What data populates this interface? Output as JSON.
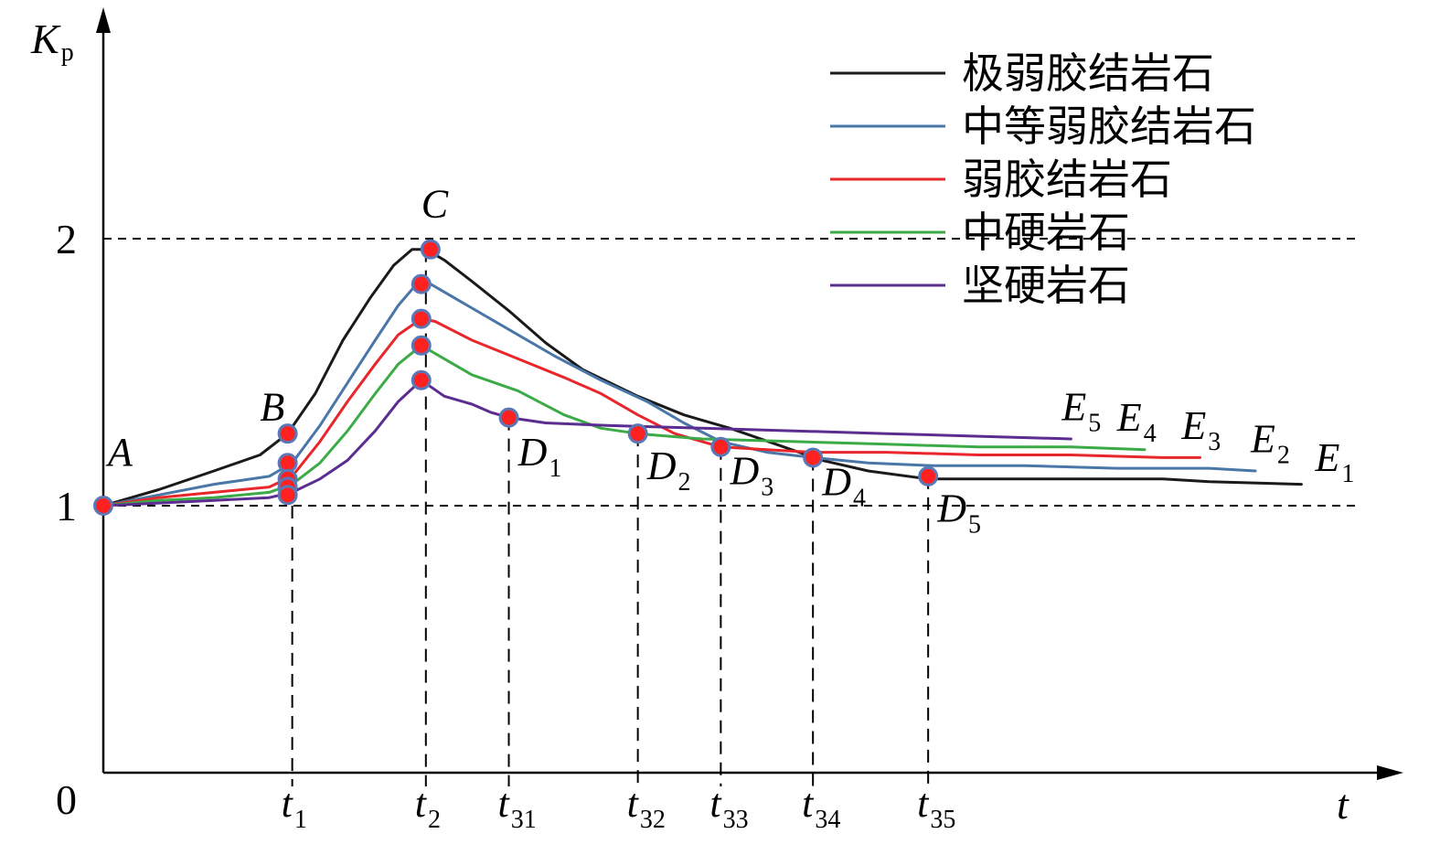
{
  "chart_data": {
    "type": "line",
    "y_axis_label": "K",
    "y_axis_label_sub": "p",
    "x_axis_label": "t",
    "ylim": [
      0,
      2.9
    ],
    "y_ticks": [
      {
        "label": "0",
        "value": 0
      },
      {
        "label": "1",
        "value": 1
      },
      {
        "label": "2",
        "value": 2
      }
    ],
    "x_ticks": [
      {
        "main": "t",
        "sub": "1",
        "value": 2.05
      },
      {
        "main": "t",
        "sub": "2",
        "value": 3.5
      },
      {
        "main": "t",
        "sub": "31",
        "value": 4.4
      },
      {
        "main": "t",
        "sub": "32",
        "value": 5.8
      },
      {
        "main": "t",
        "sub": "33",
        "value": 6.7
      },
      {
        "main": "t",
        "sub": "34",
        "value": 7.7
      },
      {
        "main": "t",
        "sub": "35",
        "value": 8.95
      }
    ],
    "reference_lines": [
      1,
      2
    ],
    "series": [
      {
        "name": "极弱胶结岩石",
        "color": "#1a1a1a",
        "points": [
          [
            0,
            1
          ],
          [
            0.6,
            1.06
          ],
          [
            1.2,
            1.13
          ],
          [
            1.7,
            1.19
          ],
          [
            2.0,
            1.27
          ],
          [
            2.3,
            1.42
          ],
          [
            2.6,
            1.62
          ],
          [
            2.9,
            1.78
          ],
          [
            3.15,
            1.9
          ],
          [
            3.35,
            1.96
          ],
          [
            3.5,
            1.96
          ],
          [
            3.7,
            1.92
          ],
          [
            4.0,
            1.84
          ],
          [
            4.4,
            1.73
          ],
          [
            4.8,
            1.61
          ],
          [
            5.2,
            1.51
          ],
          [
            5.8,
            1.41
          ],
          [
            6.3,
            1.34
          ],
          [
            6.8,
            1.29
          ],
          [
            7.3,
            1.23
          ],
          [
            7.8,
            1.17
          ],
          [
            8.3,
            1.13
          ],
          [
            8.95,
            1.1
          ],
          [
            9.5,
            1.1
          ],
          [
            10.5,
            1.1
          ],
          [
            11.5,
            1.1
          ],
          [
            12.0,
            1.09
          ],
          [
            13.0,
            1.08
          ]
        ],
        "markers": [
          [
            2.0,
            1.27
          ],
          [
            3.55,
            1.96
          ],
          [
            8.95,
            1.11
          ]
        ],
        "end_label": "E",
        "end_sub": "5"
      },
      {
        "name": "中等弱胶结岩石",
        "color": "#4a76a8",
        "points": [
          [
            0,
            1
          ],
          [
            0.6,
            1.04
          ],
          [
            1.2,
            1.08
          ],
          [
            1.8,
            1.11
          ],
          [
            2.05,
            1.16
          ],
          [
            2.35,
            1.3
          ],
          [
            2.65,
            1.46
          ],
          [
            2.95,
            1.62
          ],
          [
            3.2,
            1.75
          ],
          [
            3.4,
            1.83
          ],
          [
            3.55,
            1.83
          ],
          [
            3.9,
            1.76
          ],
          [
            4.4,
            1.66
          ],
          [
            4.9,
            1.56
          ],
          [
            5.4,
            1.47
          ],
          [
            5.9,
            1.39
          ],
          [
            6.3,
            1.31
          ],
          [
            6.7,
            1.24
          ],
          [
            7.2,
            1.2
          ],
          [
            7.7,
            1.18
          ],
          [
            8.3,
            1.16
          ],
          [
            9.0,
            1.15
          ],
          [
            10.0,
            1.15
          ],
          [
            11.0,
            1.14
          ],
          [
            12.0,
            1.14
          ],
          [
            12.5,
            1.13
          ]
        ],
        "markers": [
          [
            2.0,
            1.16
          ],
          [
            3.45,
            1.83
          ]
        ],
        "end_label": "E",
        "end_sub": "4"
      },
      {
        "name": "弱胶结岩石",
        "color": "#e8262b",
        "points": [
          [
            0,
            1
          ],
          [
            0.6,
            1.03
          ],
          [
            1.2,
            1.05
          ],
          [
            1.8,
            1.07
          ],
          [
            2.05,
            1.11
          ],
          [
            2.35,
            1.24
          ],
          [
            2.65,
            1.39
          ],
          [
            2.95,
            1.53
          ],
          [
            3.2,
            1.64
          ],
          [
            3.45,
            1.7
          ],
          [
            3.6,
            1.69
          ],
          [
            4.0,
            1.62
          ],
          [
            4.5,
            1.55
          ],
          [
            5.0,
            1.48
          ],
          [
            5.4,
            1.42
          ],
          [
            5.8,
            1.34
          ],
          [
            6.2,
            1.27
          ],
          [
            6.7,
            1.22
          ],
          [
            7.2,
            1.21
          ],
          [
            7.7,
            1.2
          ],
          [
            8.5,
            1.2
          ],
          [
            9.5,
            1.19
          ],
          [
            10.5,
            1.19
          ],
          [
            11.5,
            1.18
          ],
          [
            11.9,
            1.18
          ]
        ],
        "markers": [
          [
            2.0,
            1.1
          ],
          [
            3.45,
            1.7
          ],
          [
            6.7,
            1.22
          ]
        ],
        "end_label": "E",
        "end_sub": "3"
      },
      {
        "name": "中硬岩石",
        "color": "#3cab47",
        "points": [
          [
            0,
            1
          ],
          [
            0.6,
            1.02
          ],
          [
            1.2,
            1.03
          ],
          [
            1.8,
            1.05
          ],
          [
            2.05,
            1.08
          ],
          [
            2.35,
            1.16
          ],
          [
            2.65,
            1.28
          ],
          [
            2.95,
            1.42
          ],
          [
            3.2,
            1.53
          ],
          [
            3.45,
            1.6
          ],
          [
            3.7,
            1.55
          ],
          [
            4.0,
            1.49
          ],
          [
            4.5,
            1.43
          ],
          [
            5.0,
            1.34
          ],
          [
            5.4,
            1.29
          ],
          [
            5.8,
            1.27
          ],
          [
            6.5,
            1.25
          ],
          [
            7.5,
            1.24
          ],
          [
            8.5,
            1.23
          ],
          [
            9.5,
            1.22
          ],
          [
            10.5,
            1.22
          ],
          [
            11.3,
            1.21
          ]
        ],
        "markers": [
          [
            2.0,
            1.07
          ],
          [
            3.45,
            1.6
          ],
          [
            5.8,
            1.27
          ]
        ],
        "end_label": "E",
        "end_sub": "2"
      },
      {
        "name": "坚硬岩石",
        "color": "#5b2d90",
        "points": [
          [
            0,
            1
          ],
          [
            0.6,
            1.01
          ],
          [
            1.2,
            1.02
          ],
          [
            1.8,
            1.03
          ],
          [
            2.05,
            1.05
          ],
          [
            2.35,
            1.1
          ],
          [
            2.65,
            1.17
          ],
          [
            2.95,
            1.28
          ],
          [
            3.2,
            1.39
          ],
          [
            3.45,
            1.47
          ],
          [
            3.7,
            1.41
          ],
          [
            4.0,
            1.38
          ],
          [
            4.2,
            1.35
          ],
          [
            4.4,
            1.33
          ],
          [
            4.8,
            1.31
          ],
          [
            5.5,
            1.3
          ],
          [
            6.5,
            1.29
          ],
          [
            7.5,
            1.28
          ],
          [
            8.5,
            1.27
          ],
          [
            9.5,
            1.26
          ],
          [
            10.5,
            1.25
          ]
        ],
        "markers": [
          [
            2.0,
            1.04
          ],
          [
            3.45,
            1.47
          ],
          [
            4.4,
            1.33
          ]
        ],
        "end_label": "E",
        "end_sub": "1"
      }
    ],
    "extra_markers": [
      [
        0,
        1
      ],
      [
        7.7,
        1.18
      ]
    ],
    "point_labels": [
      {
        "main": "A",
        "sub": "",
        "x": 0.05,
        "y": 1.15
      },
      {
        "main": "B",
        "sub": "",
        "x": 1.7,
        "y": 1.32
      },
      {
        "main": "C",
        "sub": "",
        "x": 3.45,
        "y": 2.08
      },
      {
        "main": "D",
        "sub": "1",
        "x": 4.5,
        "y": 1.15
      },
      {
        "main": "D",
        "sub": "2",
        "x": 5.9,
        "y": 1.1
      },
      {
        "main": "D",
        "sub": "3",
        "x": 6.8,
        "y": 1.08
      },
      {
        "main": "D",
        "sub": "4",
        "x": 7.8,
        "y": 1.04
      },
      {
        "main": "D",
        "sub": "5",
        "x": 9.05,
        "y": 0.94
      }
    ],
    "end_label_positions": [
      {
        "x": 10.4,
        "y": 1.32
      },
      {
        "x": 11.0,
        "y": 1.28
      },
      {
        "x": 11.7,
        "y": 1.25
      },
      {
        "x": 12.45,
        "y": 1.2
      },
      {
        "x": 13.15,
        "y": 1.13
      }
    ],
    "legend": {
      "position": "top-right"
    }
  }
}
